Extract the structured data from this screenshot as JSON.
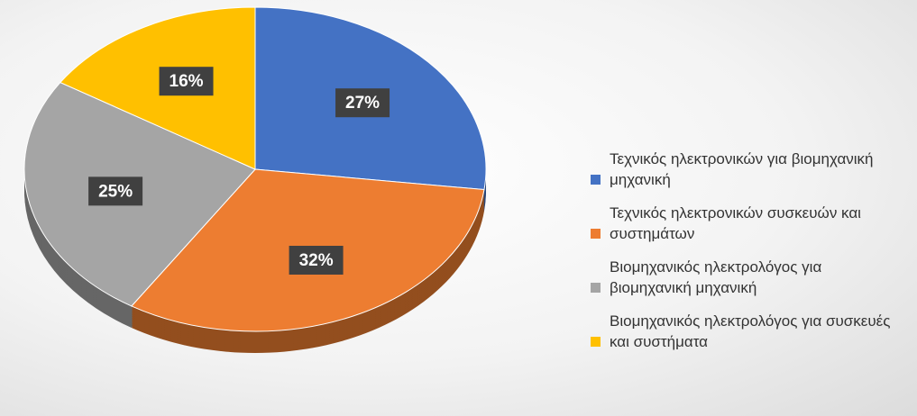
{
  "chart_data": {
    "type": "pie",
    "categories": [
      "Τεχνικός ηλεκτρονικών για βιομηχανική μηχανική",
      "Τεχνικός ηλεκτρονικών συσκευών και συστημάτων",
      "Βιομηχανικός ηλεκτρολόγος για βιομηχανική μηχανική",
      "Βιομηχανικός ηλεκτρολόγος για συσκευές και συστήματα"
    ],
    "values": [
      27,
      32,
      25,
      16
    ],
    "value_labels": [
      "27%",
      "32%",
      "25%",
      "16%"
    ],
    "colors": [
      "#4472c4",
      "#ed7d31",
      "#a5a5a5",
      "#ffc000"
    ],
    "legend": "right"
  }
}
